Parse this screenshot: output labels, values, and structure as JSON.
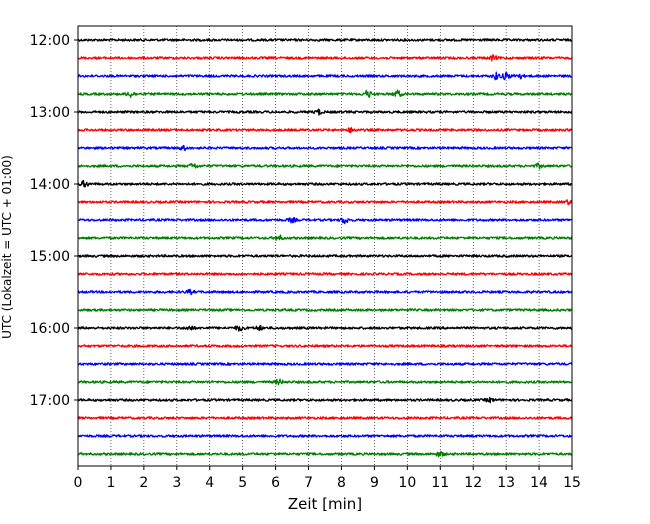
{
  "chart_data": {
    "type": "line",
    "title": "",
    "xlabel": "Zeit  [min]",
    "ylabel": "UTC (Lokalzeit = UTC + 01:00)",
    "xlim": [
      0,
      15
    ],
    "x_ticks": [
      "0",
      "1",
      "2",
      "3",
      "4",
      "5",
      "6",
      "7",
      "8",
      "9",
      "10",
      "11",
      "12",
      "13",
      "14",
      "15"
    ],
    "y_ticks": [
      "12:00",
      "13:00",
      "14:00",
      "15:00",
      "16:00",
      "17:00"
    ],
    "grid": "vertical-dotted",
    "legend": "none",
    "trace_colors": [
      "#000000",
      "#ff0000",
      "#0000ff",
      "#008000"
    ],
    "series": [
      {
        "start": "12:00",
        "color": "#000000"
      },
      {
        "start": "12:15",
        "color": "#ff0000",
        "events": [
          {
            "t": 12.6,
            "a": 2.2
          }
        ]
      },
      {
        "start": "12:30",
        "color": "#0000ff",
        "events": [
          {
            "t": 12.7,
            "a": 3.0
          },
          {
            "t": 13.0,
            "a": 3.2
          },
          {
            "t": 13.4,
            "a": 2.4
          }
        ]
      },
      {
        "start": "12:45",
        "color": "#008000",
        "events": [
          {
            "t": 1.6,
            "a": 2.8
          },
          {
            "t": 8.8,
            "a": 3.2
          },
          {
            "t": 9.7,
            "a": 3.0
          }
        ]
      },
      {
        "start": "13:00",
        "color": "#000000",
        "events": [
          {
            "t": 7.3,
            "a": 2.2
          }
        ]
      },
      {
        "start": "13:15",
        "color": "#ff0000",
        "events": [
          {
            "t": 8.3,
            "a": 1.9
          }
        ]
      },
      {
        "start": "13:30",
        "color": "#0000ff",
        "events": [
          {
            "t": 3.2,
            "a": 1.8
          }
        ]
      },
      {
        "start": "13:45",
        "color": "#008000",
        "events": [
          {
            "t": 3.5,
            "a": 2.4
          },
          {
            "t": 14.0,
            "a": 1.9
          }
        ]
      },
      {
        "start": "14:00",
        "color": "#000000",
        "events": [
          {
            "t": 0.2,
            "a": 2.6
          }
        ]
      },
      {
        "start": "14:15",
        "color": "#ff0000",
        "events": [
          {
            "t": 14.9,
            "a": 1.8
          }
        ]
      },
      {
        "start": "14:30",
        "color": "#0000ff",
        "events": [
          {
            "t": 8.1,
            "a": 3.0
          },
          {
            "t": 6.5,
            "a": 2.0
          }
        ]
      },
      {
        "start": "14:45",
        "color": "#008000",
        "events": [
          {
            "t": 6.1,
            "a": 2.2
          }
        ]
      },
      {
        "start": "15:00",
        "color": "#000000"
      },
      {
        "start": "15:15",
        "color": "#ff0000"
      },
      {
        "start": "15:30",
        "color": "#0000ff",
        "events": [
          {
            "t": 3.4,
            "a": 1.7
          }
        ]
      },
      {
        "start": "15:45",
        "color": "#008000"
      },
      {
        "start": "16:00",
        "color": "#000000",
        "events": [
          {
            "t": 3.4,
            "a": 2.0
          },
          {
            "t": 4.9,
            "a": 2.4
          },
          {
            "t": 5.5,
            "a": 1.8
          }
        ]
      },
      {
        "start": "16:15",
        "color": "#ff0000"
      },
      {
        "start": "16:30",
        "color": "#0000ff"
      },
      {
        "start": "16:45",
        "color": "#008000",
        "events": [
          {
            "t": 6.1,
            "a": 2.2
          }
        ]
      },
      {
        "start": "17:00",
        "color": "#000000",
        "events": [
          {
            "t": 12.5,
            "a": 1.8
          }
        ]
      },
      {
        "start": "17:15",
        "color": "#ff0000"
      },
      {
        "start": "17:30",
        "color": "#0000ff"
      },
      {
        "start": "17:45",
        "color": "#008000",
        "events": [
          {
            "t": 11.0,
            "a": 2.2
          }
        ]
      }
    ]
  }
}
